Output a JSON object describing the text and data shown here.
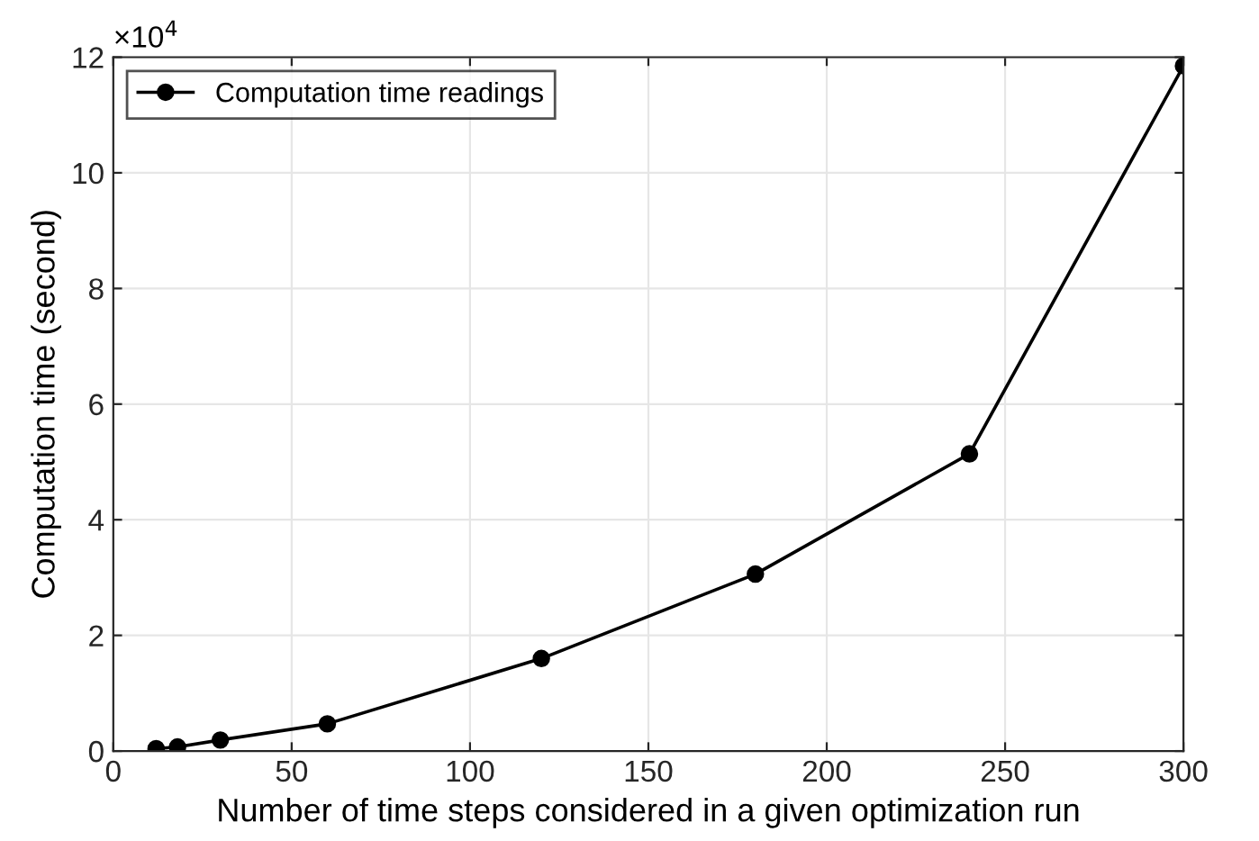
{
  "chart_data": {
    "type": "line",
    "xlabel": "Number of time steps considered in a given optimization run",
    "ylabel": "Computation time (second)",
    "annotations": [
      "×10$^{4}$"
    ],
    "x": [
      12,
      18,
      30,
      60,
      120,
      180,
      240,
      300
    ],
    "series": [
      {
        "name": "Computation time readings",
        "color": "#000000",
        "values": [
          0.04,
          0.07,
          0.19,
          0.47,
          1.6,
          3.06,
          5.14,
          11.85
        ]
      }
    ],
    "xlim": [
      0,
      300
    ],
    "xticks": [
      0,
      50,
      100,
      150,
      200,
      250,
      300
    ],
    "ylim": [
      0,
      12
    ],
    "yticks": [
      0,
      2,
      4,
      6,
      8,
      10,
      12
    ],
    "grid": true,
    "legend": "top left",
    "marker": "circle",
    "line_style": "solid"
  }
}
